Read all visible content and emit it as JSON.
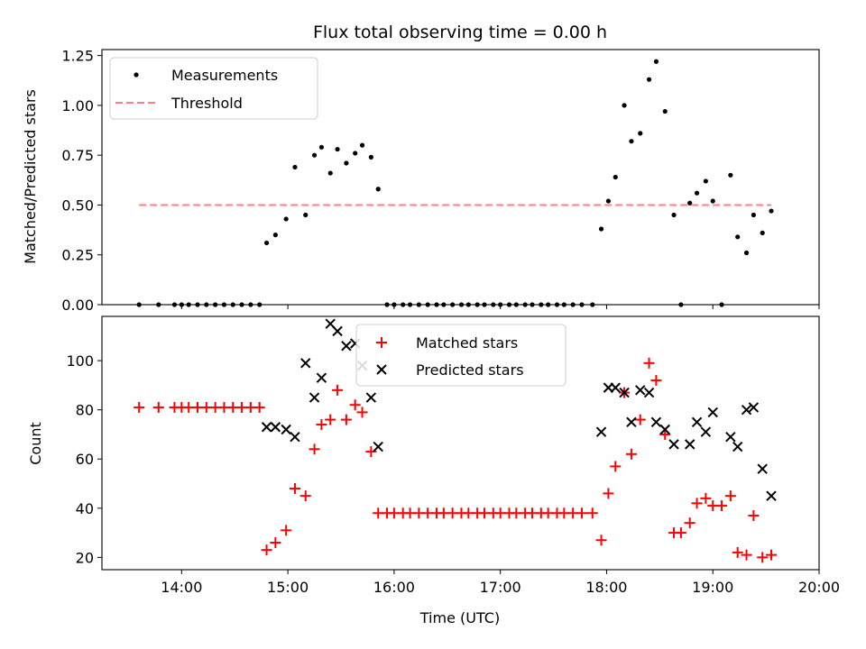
{
  "chart_data": [
    {
      "type": "scatter",
      "title": "Flux total observing time = 0.00 h",
      "xlabel": "",
      "ylabel": "Matched/Predicted stars",
      "xlim": [
        "13:15",
        "20:00"
      ],
      "ylim": [
        0,
        1.28
      ],
      "yticks": [
        "0.00",
        "0.25",
        "0.50",
        "0.75",
        "1.00",
        "1.25"
      ],
      "legend_position": "top-left",
      "series": [
        {
          "name": "Measurements",
          "marker": "dot",
          "color": "#000000",
          "points": [
            [
              "13:36",
              0
            ],
            [
              "13:47",
              0
            ],
            [
              "13:56",
              0
            ],
            [
              "14:00",
              0
            ],
            [
              "14:04",
              0
            ],
            [
              "14:09",
              0
            ],
            [
              "14:14",
              0
            ],
            [
              "14:19",
              0
            ],
            [
              "14:24",
              0
            ],
            [
              "14:29",
              0
            ],
            [
              "14:34",
              0
            ],
            [
              "14:39",
              0
            ],
            [
              "14:44",
              0
            ],
            [
              "14:48",
              0.31
            ],
            [
              "14:53",
              0.35
            ],
            [
              "14:59",
              0.43
            ],
            [
              "15:04",
              0.69
            ],
            [
              "15:10",
              0.45
            ],
            [
              "15:15",
              0.75
            ],
            [
              "15:19",
              0.79
            ],
            [
              "15:24",
              0.66
            ],
            [
              "15:28",
              0.78
            ],
            [
              "15:33",
              0.71
            ],
            [
              "15:38",
              0.76
            ],
            [
              "15:42",
              0.8
            ],
            [
              "15:47",
              0.74
            ],
            [
              "15:51",
              0.58
            ],
            [
              "15:56",
              0
            ],
            [
              "16:00",
              0
            ],
            [
              "16:05",
              0
            ],
            [
              "16:09",
              0
            ],
            [
              "16:14",
              0
            ],
            [
              "16:19",
              0
            ],
            [
              "16:24",
              0
            ],
            [
              "16:28",
              0
            ],
            [
              "16:33",
              0
            ],
            [
              "16:38",
              0
            ],
            [
              "16:42",
              0
            ],
            [
              "16:47",
              0
            ],
            [
              "16:51",
              0
            ],
            [
              "16:56",
              0
            ],
            [
              "17:00",
              0
            ],
            [
              "17:05",
              0
            ],
            [
              "17:09",
              0
            ],
            [
              "17:14",
              0
            ],
            [
              "17:18",
              0
            ],
            [
              "17:23",
              0
            ],
            [
              "17:27",
              0
            ],
            [
              "17:32",
              0
            ],
            [
              "17:36",
              0
            ],
            [
              "17:41",
              0
            ],
            [
              "17:46",
              0
            ],
            [
              "17:52",
              0
            ],
            [
              "17:57",
              0.38
            ],
            [
              "18:01",
              0.52
            ],
            [
              "18:05",
              0.64
            ],
            [
              "18:10",
              1.0
            ],
            [
              "18:14",
              0.82
            ],
            [
              "18:19",
              0.86
            ],
            [
              "18:24",
              1.13
            ],
            [
              "18:28",
              1.22
            ],
            [
              "18:33",
              0.97
            ],
            [
              "18:38",
              0.45
            ],
            [
              "18:42",
              0
            ],
            [
              "18:47",
              0.51
            ],
            [
              "18:51",
              0.56
            ],
            [
              "18:56",
              0.62
            ],
            [
              "19:00",
              0.52
            ],
            [
              "19:05",
              0
            ],
            [
              "19:10",
              0.65
            ],
            [
              "19:14",
              0.34
            ],
            [
              "19:19",
              0.26
            ],
            [
              "19:23",
              0.45
            ],
            [
              "19:28",
              0.36
            ],
            [
              "19:33",
              0.47
            ]
          ]
        },
        {
          "name": "Threshold",
          "marker": "dashed-line",
          "color": "#ff8080",
          "points": [
            [
              "13:36",
              0.5
            ],
            [
              "19:33",
              0.5
            ]
          ]
        }
      ]
    },
    {
      "type": "scatter",
      "title": "",
      "xlabel": "Time (UTC)",
      "ylabel": "Count",
      "xlim": [
        "13:15",
        "20:00"
      ],
      "ylim": [
        15,
        118
      ],
      "yticks": [
        "20",
        "40",
        "60",
        "80",
        "100"
      ],
      "xticks": [
        "14:00",
        "15:00",
        "16:00",
        "17:00",
        "18:00",
        "19:00",
        "20:00"
      ],
      "legend_position": "top-center",
      "series": [
        {
          "name": "Matched stars",
          "marker": "plus",
          "color": "#ff0000",
          "points": [
            [
              "13:36",
              81
            ],
            [
              "13:47",
              81
            ],
            [
              "13:56",
              81
            ],
            [
              "14:00",
              81
            ],
            [
              "14:04",
              81
            ],
            [
              "14:09",
              81
            ],
            [
              "14:14",
              81
            ],
            [
              "14:19",
              81
            ],
            [
              "14:24",
              81
            ],
            [
              "14:29",
              81
            ],
            [
              "14:34",
              81
            ],
            [
              "14:39",
              81
            ],
            [
              "14:44",
              81
            ],
            [
              "14:48",
              23
            ],
            [
              "14:53",
              26
            ],
            [
              "14:59",
              31
            ],
            [
              "15:04",
              48
            ],
            [
              "15:10",
              45
            ],
            [
              "15:15",
              64
            ],
            [
              "15:19",
              74
            ],
            [
              "15:24",
              76
            ],
            [
              "15:28",
              88
            ],
            [
              "15:33",
              76
            ],
            [
              "15:38",
              82
            ],
            [
              "15:42",
              79
            ],
            [
              "15:47",
              63
            ],
            [
              "15:51",
              38
            ],
            [
              "15:56",
              38
            ],
            [
              "16:00",
              38
            ],
            [
              "16:05",
              38
            ],
            [
              "16:09",
              38
            ],
            [
              "16:14",
              38
            ],
            [
              "16:19",
              38
            ],
            [
              "16:24",
              38
            ],
            [
              "16:28",
              38
            ],
            [
              "16:33",
              38
            ],
            [
              "16:38",
              38
            ],
            [
              "16:42",
              38
            ],
            [
              "16:47",
              38
            ],
            [
              "16:51",
              38
            ],
            [
              "16:56",
              38
            ],
            [
              "17:00",
              38
            ],
            [
              "17:05",
              38
            ],
            [
              "17:09",
              38
            ],
            [
              "17:14",
              38
            ],
            [
              "17:18",
              38
            ],
            [
              "17:23",
              38
            ],
            [
              "17:27",
              38
            ],
            [
              "17:32",
              38
            ],
            [
              "17:36",
              38
            ],
            [
              "17:41",
              38
            ],
            [
              "17:46",
              38
            ],
            [
              "17:52",
              38
            ],
            [
              "17:57",
              27
            ],
            [
              "18:01",
              46
            ],
            [
              "18:05",
              57
            ],
            [
              "18:10",
              87
            ],
            [
              "18:14",
              62
            ],
            [
              "18:19",
              76
            ],
            [
              "18:24",
              99
            ],
            [
              "18:28",
              92
            ],
            [
              "18:33",
              70
            ],
            [
              "18:38",
              30
            ],
            [
              "18:42",
              30
            ],
            [
              "18:47",
              34
            ],
            [
              "18:51",
              42
            ],
            [
              "18:56",
              44
            ],
            [
              "19:00",
              41
            ],
            [
              "19:05",
              41
            ],
            [
              "19:10",
              45
            ],
            [
              "19:14",
              22
            ],
            [
              "19:19",
              21
            ],
            [
              "19:23",
              37
            ],
            [
              "19:28",
              20
            ],
            [
              "19:33",
              21
            ]
          ]
        },
        {
          "name": "Predicted stars",
          "marker": "x",
          "color": "#000000",
          "points": [
            [
              "14:48",
              73
            ],
            [
              "14:53",
              73
            ],
            [
              "14:59",
              72
            ],
            [
              "15:04",
              69
            ],
            [
              "15:10",
              99
            ],
            [
              "15:15",
              85
            ],
            [
              "15:19",
              93
            ],
            [
              "15:24",
              115
            ],
            [
              "15:28",
              112
            ],
            [
              "15:33",
              106
            ],
            [
              "15:38",
              107
            ],
            [
              "15:42",
              98
            ],
            [
              "15:47",
              85
            ],
            [
              "15:51",
              65
            ],
            [
              "17:57",
              71
            ],
            [
              "18:01",
              89
            ],
            [
              "18:05",
              89
            ],
            [
              "18:10",
              87
            ],
            [
              "18:14",
              75
            ],
            [
              "18:19",
              88
            ],
            [
              "18:24",
              87
            ],
            [
              "18:28",
              75
            ],
            [
              "18:33",
              72
            ],
            [
              "18:38",
              66
            ],
            [
              "18:47",
              66
            ],
            [
              "18:51",
              75
            ],
            [
              "18:56",
              71
            ],
            [
              "19:00",
              79
            ],
            [
              "19:10",
              69
            ],
            [
              "19:14",
              65
            ],
            [
              "19:19",
              80
            ],
            [
              "19:23",
              81
            ],
            [
              "19:28",
              56
            ],
            [
              "19:33",
              45
            ]
          ]
        }
      ]
    }
  ]
}
